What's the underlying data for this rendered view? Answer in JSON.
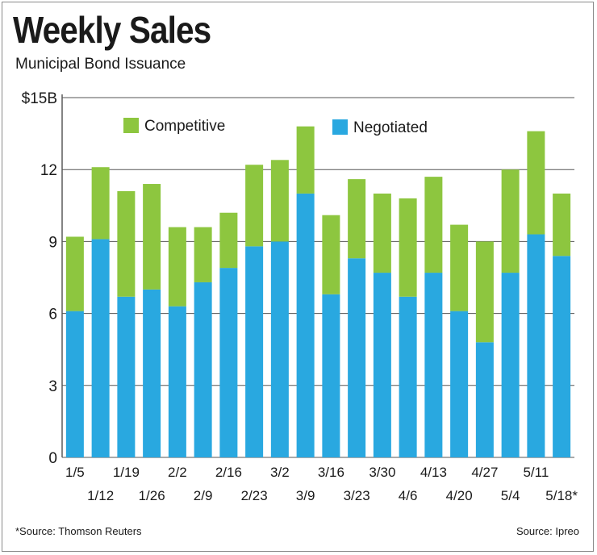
{
  "title": "Weekly Sales",
  "subtitle": "Municipal Bond Issuance",
  "footer": {
    "left": "*Source: Thomson Reuters",
    "right": "Source: Ipreo"
  },
  "colors": {
    "competitive": "#8dc63f",
    "negotiated": "#29a8e0",
    "grid": "#555555"
  },
  "chart_data": {
    "type": "bar",
    "stacked": true,
    "title": "Weekly Sales",
    "subtitle": "Municipal Bond Issuance",
    "xlabel": "",
    "ylabel": "",
    "ylim": [
      0,
      15
    ],
    "yticks": [
      "0",
      "3",
      "6",
      "9",
      "12",
      "$15B"
    ],
    "ytick_values": [
      0,
      3,
      6,
      9,
      12,
      15
    ],
    "grid": true,
    "legend_position": "top",
    "categories": [
      "1/5",
      "1/12",
      "1/19",
      "1/26",
      "2/2",
      "2/9",
      "2/16",
      "2/23",
      "3/2",
      "3/9",
      "3/16",
      "3/23",
      "3/30",
      "4/6",
      "4/13",
      "4/20",
      "4/27",
      "5/4",
      "5/11",
      "5/18*"
    ],
    "series": [
      {
        "name": "Negotiated",
        "color": "#29a8e0",
        "values": [
          6.1,
          9.1,
          6.7,
          7.0,
          6.3,
          7.3,
          7.9,
          8.8,
          9.0,
          11.0,
          6.8,
          8.3,
          7.7,
          6.7,
          7.7,
          6.1,
          4.8,
          7.7,
          9.3,
          8.4
        ]
      },
      {
        "name": "Competitive",
        "color": "#8dc63f",
        "values": [
          3.1,
          3.0,
          4.4,
          4.4,
          3.3,
          2.3,
          2.3,
          3.4,
          3.4,
          2.8,
          3.3,
          3.3,
          3.3,
          4.1,
          4.0,
          3.6,
          4.2,
          4.3,
          4.3,
          2.6
        ]
      }
    ]
  }
}
